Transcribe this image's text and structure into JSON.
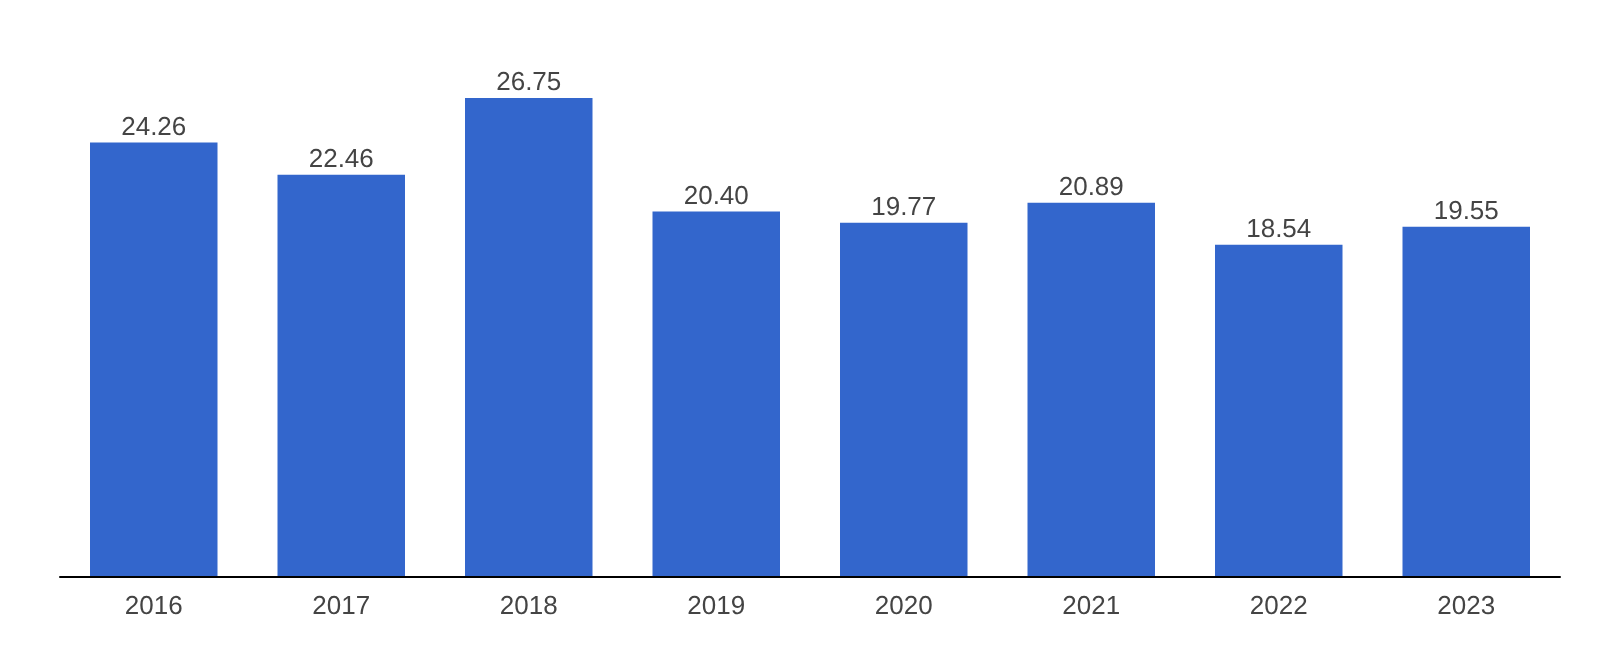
{
  "chart_data": {
    "type": "bar",
    "categories": [
      "2016",
      "2017",
      "2018",
      "2019",
      "2020",
      "2021",
      "2022",
      "2023"
    ],
    "values": [
      24.26,
      22.46,
      26.75,
      20.4,
      19.77,
      20.89,
      18.54,
      19.55
    ],
    "value_labels": [
      "24.26",
      "22.46",
      "26.75",
      "20.40",
      "19.77",
      "20.89",
      "18.54",
      "19.55"
    ],
    "color": "#3366cc"
  }
}
